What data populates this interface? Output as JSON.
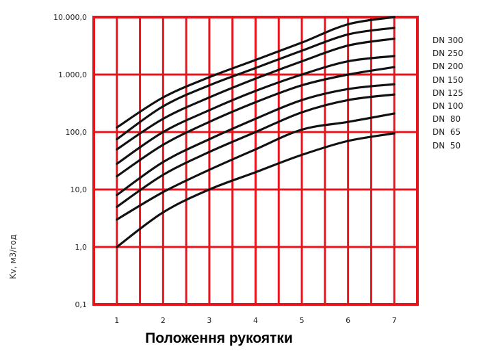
{
  "chart_data": {
    "type": "line",
    "xlabel": "Положення рукоятки",
    "ylabel": "Kv, м3/год",
    "x": [
      1,
      2,
      3,
      4,
      5,
      6,
      7
    ],
    "xticks": [
      "1",
      "2",
      "3",
      "4",
      "5",
      "6",
      "7"
    ],
    "yscale": "log",
    "ylim": [
      0.1,
      10000
    ],
    "yticks": [
      {
        "value": 0.1,
        "label": "0,1"
      },
      {
        "value": 1,
        "label": "1,0"
      },
      {
        "value": 10,
        "label": "10,0"
      },
      {
        "value": 100,
        "label": "100,0"
      },
      {
        "value": 1000,
        "label": "1.000,0"
      },
      {
        "value": 10000,
        "label": "10.000,0"
      }
    ],
    "grid": true,
    "legend": [
      "DN 300",
      "DN 250",
      "DN 200",
      "DN 150",
      "DN 125",
      "DN 100",
      "DN  80",
      "DN  65",
      "DN  50"
    ],
    "legend_position": "right",
    "colors": {
      "grid": "#e8141c",
      "line": "#111111"
    },
    "series": [
      {
        "values": [
          120,
          400,
          900,
          1800,
          3600,
          7500,
          10000
        ]
      },
      {
        "values": [
          75,
          280,
          650,
          1300,
          2600,
          5000,
          6500
        ]
      },
      {
        "values": [
          50,
          170,
          400,
          850,
          1700,
          3200,
          4200
        ]
      },
      {
        "values": [
          28,
          100,
          240,
          520,
          1000,
          1700,
          2100
        ]
      },
      {
        "values": [
          17,
          60,
          150,
          330,
          650,
          1000,
          1350
        ]
      },
      {
        "values": [
          8,
          30,
          75,
          170,
          360,
          560,
          680
        ]
      },
      {
        "values": [
          5,
          18,
          45,
          100,
          220,
          360,
          450
        ]
      },
      {
        "values": [
          3,
          9,
          22,
          50,
          110,
          150,
          210
        ]
      },
      {
        "values": [
          1.0,
          4,
          10,
          20,
          40,
          70,
          95
        ]
      }
    ]
  }
}
